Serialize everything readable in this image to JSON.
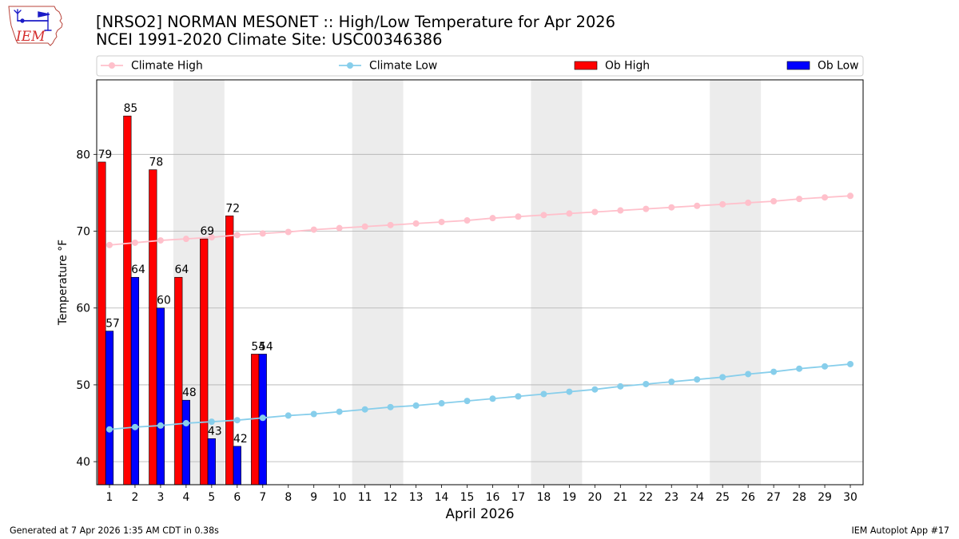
{
  "logo": {
    "text": "IEM",
    "icon": "iem-iowa-map-logo"
  },
  "chart_data": {
    "type": "bar",
    "title": "[NRSO2] NORMAN MESONET :: High/Low Temperature for Apr 2026",
    "subtitle": "NCEI 1991-2020 Climate Site: USC00346386",
    "xlabel": "April 2026",
    "ylabel": "Temperature °F",
    "x": [
      1,
      2,
      3,
      4,
      5,
      6,
      7,
      8,
      9,
      10,
      11,
      12,
      13,
      14,
      15,
      16,
      17,
      18,
      19,
      20,
      21,
      22,
      23,
      24,
      25,
      26,
      27,
      28,
      29,
      30
    ],
    "xlim": [
      0.5,
      30.5
    ],
    "ylim": [
      37,
      89.7
    ],
    "yticks": [
      40,
      50,
      60,
      70,
      80
    ],
    "grid": true,
    "legend": "top",
    "shaded_days": [
      4,
      5,
      11,
      12,
      18,
      19,
      25,
      26
    ],
    "shade_color": "#ececec",
    "series": [
      {
        "name": "Climate High",
        "type": "line",
        "color": "#ffc0cb",
        "values": [
          68.2,
          68.5,
          68.8,
          69.0,
          69.2,
          69.5,
          69.7,
          69.9,
          70.2,
          70.4,
          70.6,
          70.8,
          71.0,
          71.2,
          71.4,
          71.7,
          71.9,
          72.1,
          72.3,
          72.5,
          72.7,
          72.9,
          73.1,
          73.3,
          73.5,
          73.7,
          73.9,
          74.2,
          74.4,
          74.6
        ]
      },
      {
        "name": "Climate Low",
        "type": "line",
        "color": "#87ceeb",
        "values": [
          44.2,
          44.5,
          44.7,
          45.0,
          45.2,
          45.4,
          45.7,
          46.0,
          46.2,
          46.5,
          46.8,
          47.1,
          47.3,
          47.6,
          47.9,
          48.2,
          48.5,
          48.8,
          49.1,
          49.4,
          49.8,
          50.1,
          50.4,
          50.7,
          51.0,
          51.4,
          51.7,
          52.1,
          52.4,
          52.7
        ]
      },
      {
        "name": "Ob High",
        "type": "bar",
        "color": "#ff0000",
        "x": [
          1,
          2,
          3,
          4,
          5,
          6,
          7
        ],
        "values": [
          79,
          85,
          78,
          64,
          69,
          72,
          54
        ]
      },
      {
        "name": "Ob Low",
        "type": "bar",
        "color": "#0000ff",
        "x": [
          1,
          2,
          3,
          4,
          5,
          6,
          7
        ],
        "values": [
          57,
          64,
          60,
          48,
          43,
          42,
          54
        ]
      }
    ]
  },
  "footer": {
    "generated": "Generated at 7 Apr 2026 1:35 AM CDT in 0.38s",
    "app": "IEM Autoplot App #17"
  }
}
